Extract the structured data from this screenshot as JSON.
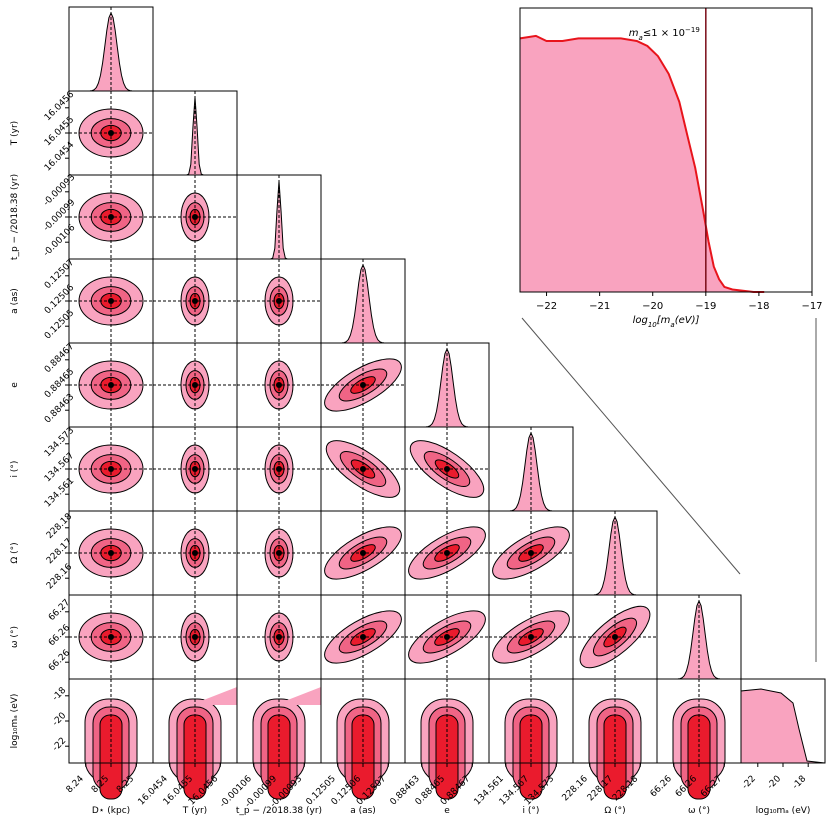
{
  "corner_plot": {
    "params": [
      {
        "name": "D_star",
        "label": "D$_\\star$ (kpc)",
        "ticks": [
          "8.24",
          "8.25",
          "8.25"
        ],
        "truth": 0.5
      },
      {
        "name": "T",
        "label": "T (yr)",
        "ticks": [
          "16.0454",
          "16.0455",
          "16.0456"
        ],
        "truth": 0.5
      },
      {
        "name": "tp",
        "label": "t_p − /2018.38 (yr)",
        "ticks": [
          "-0.00106",
          "-0.00099",
          "-0.00093"
        ],
        "truth": 0.5
      },
      {
        "name": "a",
        "label": "a (as)",
        "ticks": [
          "0.12505",
          "0.12506",
          "0.12507"
        ],
        "truth": 0.5
      },
      {
        "name": "e",
        "label": "e",
        "ticks": [
          "0.88463",
          "0.88465",
          "0.88467"
        ],
        "truth": 0.5
      },
      {
        "name": "i",
        "label": "i (°)",
        "ticks": [
          "134.561",
          "134.567",
          "134.573"
        ],
        "truth": 0.5
      },
      {
        "name": "Omega",
        "label": "Ω (°)",
        "ticks": [
          "228.16",
          "228.17",
          "228.18"
        ],
        "truth": 0.5
      },
      {
        "name": "omega",
        "label": "ω (°)",
        "ticks": [
          "66.26",
          "66.26",
          "66.27"
        ],
        "truth": 0.5
      },
      {
        "name": "log10ma",
        "label": "log₁₀mₐ (eV)",
        "ticks": [
          "-22",
          "-20",
          "-18"
        ],
        "truth": null
      }
    ],
    "ylabels": [
      "T (yr)",
      "t_p − /2018.38 (yr)",
      "a (as)",
      "e",
      "i (°)",
      "Ω (°)",
      "ω (°)",
      "log₁₀mₐ (eV)"
    ],
    "ytick_sets": [
      [
        "16.0456",
        "16.0455",
        "16.0454"
      ],
      [
        "-0.00093",
        "-0.00099",
        "-0.00106"
      ],
      [
        "0.12507",
        "0.12506",
        "0.12505"
      ],
      [
        "0.88467",
        "0.88465",
        "0.88463"
      ],
      [
        "134.573",
        "134.567",
        "134.561"
      ],
      [
        "228.18",
        "228.17",
        "228.16"
      ],
      [
        "66.27",
        "66.26",
        "66.26"
      ],
      [
        "-18",
        "-20",
        "-22"
      ]
    ],
    "colors": {
      "outer": "#f9a3bf",
      "mid": "#f06485",
      "inner": "#ea1b2d",
      "line": "#000000"
    }
  },
  "chart_data": {
    "type": "area",
    "title": "m_a ≤ 1 × 10^−19",
    "annotation_parts": {
      "pre": "m",
      "sub": "a",
      "mid": "≤1 × 10",
      "sup": "−19"
    },
    "xlabel": "log10[ma(eV)]",
    "xlabel_parts": {
      "pre": "log",
      "sub1": "10",
      "mid": "[m",
      "sub2": "a",
      "post": "(eV)]"
    },
    "ylabel": "",
    "xlim": [
      -22.5,
      -17
    ],
    "ylim": [
      0,
      1.12
    ],
    "xticks": [
      "-22",
      "-21",
      "-20",
      "-19",
      "-18",
      "-17"
    ],
    "threshold": -19,
    "x": [
      -22.5,
      -22.2,
      -22.0,
      -21.7,
      -21.4,
      -21.0,
      -20.6,
      -20.3,
      -20.1,
      -19.9,
      -19.7,
      -19.5,
      -19.35,
      -19.2,
      -19.05,
      -18.95,
      -18.85,
      -18.75,
      -18.65,
      -18.5,
      -18.3,
      -18.1,
      -17.9
    ],
    "values": [
      1.0,
      1.01,
      0.99,
      0.99,
      1.0,
      1.0,
      1.0,
      0.99,
      0.97,
      0.93,
      0.86,
      0.75,
      0.62,
      0.49,
      0.32,
      0.2,
      0.1,
      0.05,
      0.02,
      0.01,
      0.005,
      0.0,
      0.0
    ],
    "colors": {
      "fill": "#f9a3bf",
      "line": "#e8141c",
      "threshold": "#7a0c17"
    }
  }
}
